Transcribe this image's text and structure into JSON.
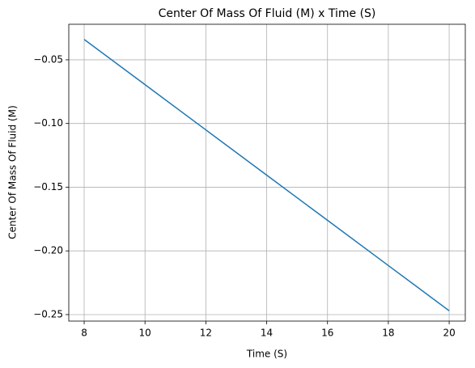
{
  "chart_data": {
    "type": "line",
    "title": "Center Of Mass Of Fluid (M) x Time (S)",
    "x_label": "Time (S)",
    "y_label": "Center Of Mass Of Fluid (M)",
    "x": [
      8,
      10,
      12,
      14,
      16,
      18,
      20
    ],
    "series": [
      {
        "name": "Center Of Mass",
        "color": "#1f77b4",
        "values": [
          -0.034,
          -0.0695,
          -0.105,
          -0.1405,
          -0.176,
          -0.2115,
          -0.247
        ]
      }
    ],
    "xlim": [
      7.494,
      20.53
    ],
    "xticks": [
      8,
      10,
      12,
      14,
      16,
      18,
      20
    ],
    "ylim": [
      -0.2551,
      -0.0221
    ],
    "yticks": [
      {
        "value": -0.25,
        "label": "−0.25"
      },
      {
        "value": -0.2,
        "label": "−0.20"
      },
      {
        "value": -0.15,
        "label": "−0.15"
      },
      {
        "value": -0.1,
        "label": "−0.10"
      },
      {
        "value": -0.05,
        "label": "−0.05"
      }
    ],
    "grid": true
  }
}
